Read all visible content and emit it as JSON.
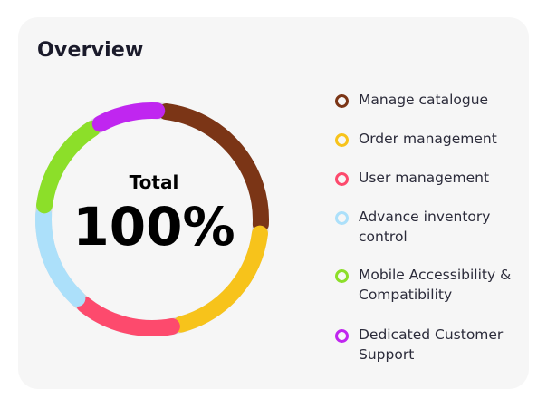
{
  "card": {
    "title": "Overview"
  },
  "chart_data": {
    "type": "pie",
    "style": "donut",
    "center_label": "Total",
    "center_value": "100%",
    "series": [
      {
        "name": "Manage catalogue",
        "value": 25,
        "color": "#7b3516"
      },
      {
        "name": "Order management",
        "value": 20,
        "color": "#f7c31b"
      },
      {
        "name": "User management",
        "value": 15,
        "color": "#fd4a6d"
      },
      {
        "name": "Advance inventory control",
        "value": 15,
        "color": "#ace0fa"
      },
      {
        "name": "Mobile Accessibility & Compatibility",
        "value": 15,
        "color": "#8cdf29"
      },
      {
        "name": "Dedicated Customer Support",
        "value": 10,
        "color": "#c026f0"
      }
    ],
    "legend": "right"
  }
}
